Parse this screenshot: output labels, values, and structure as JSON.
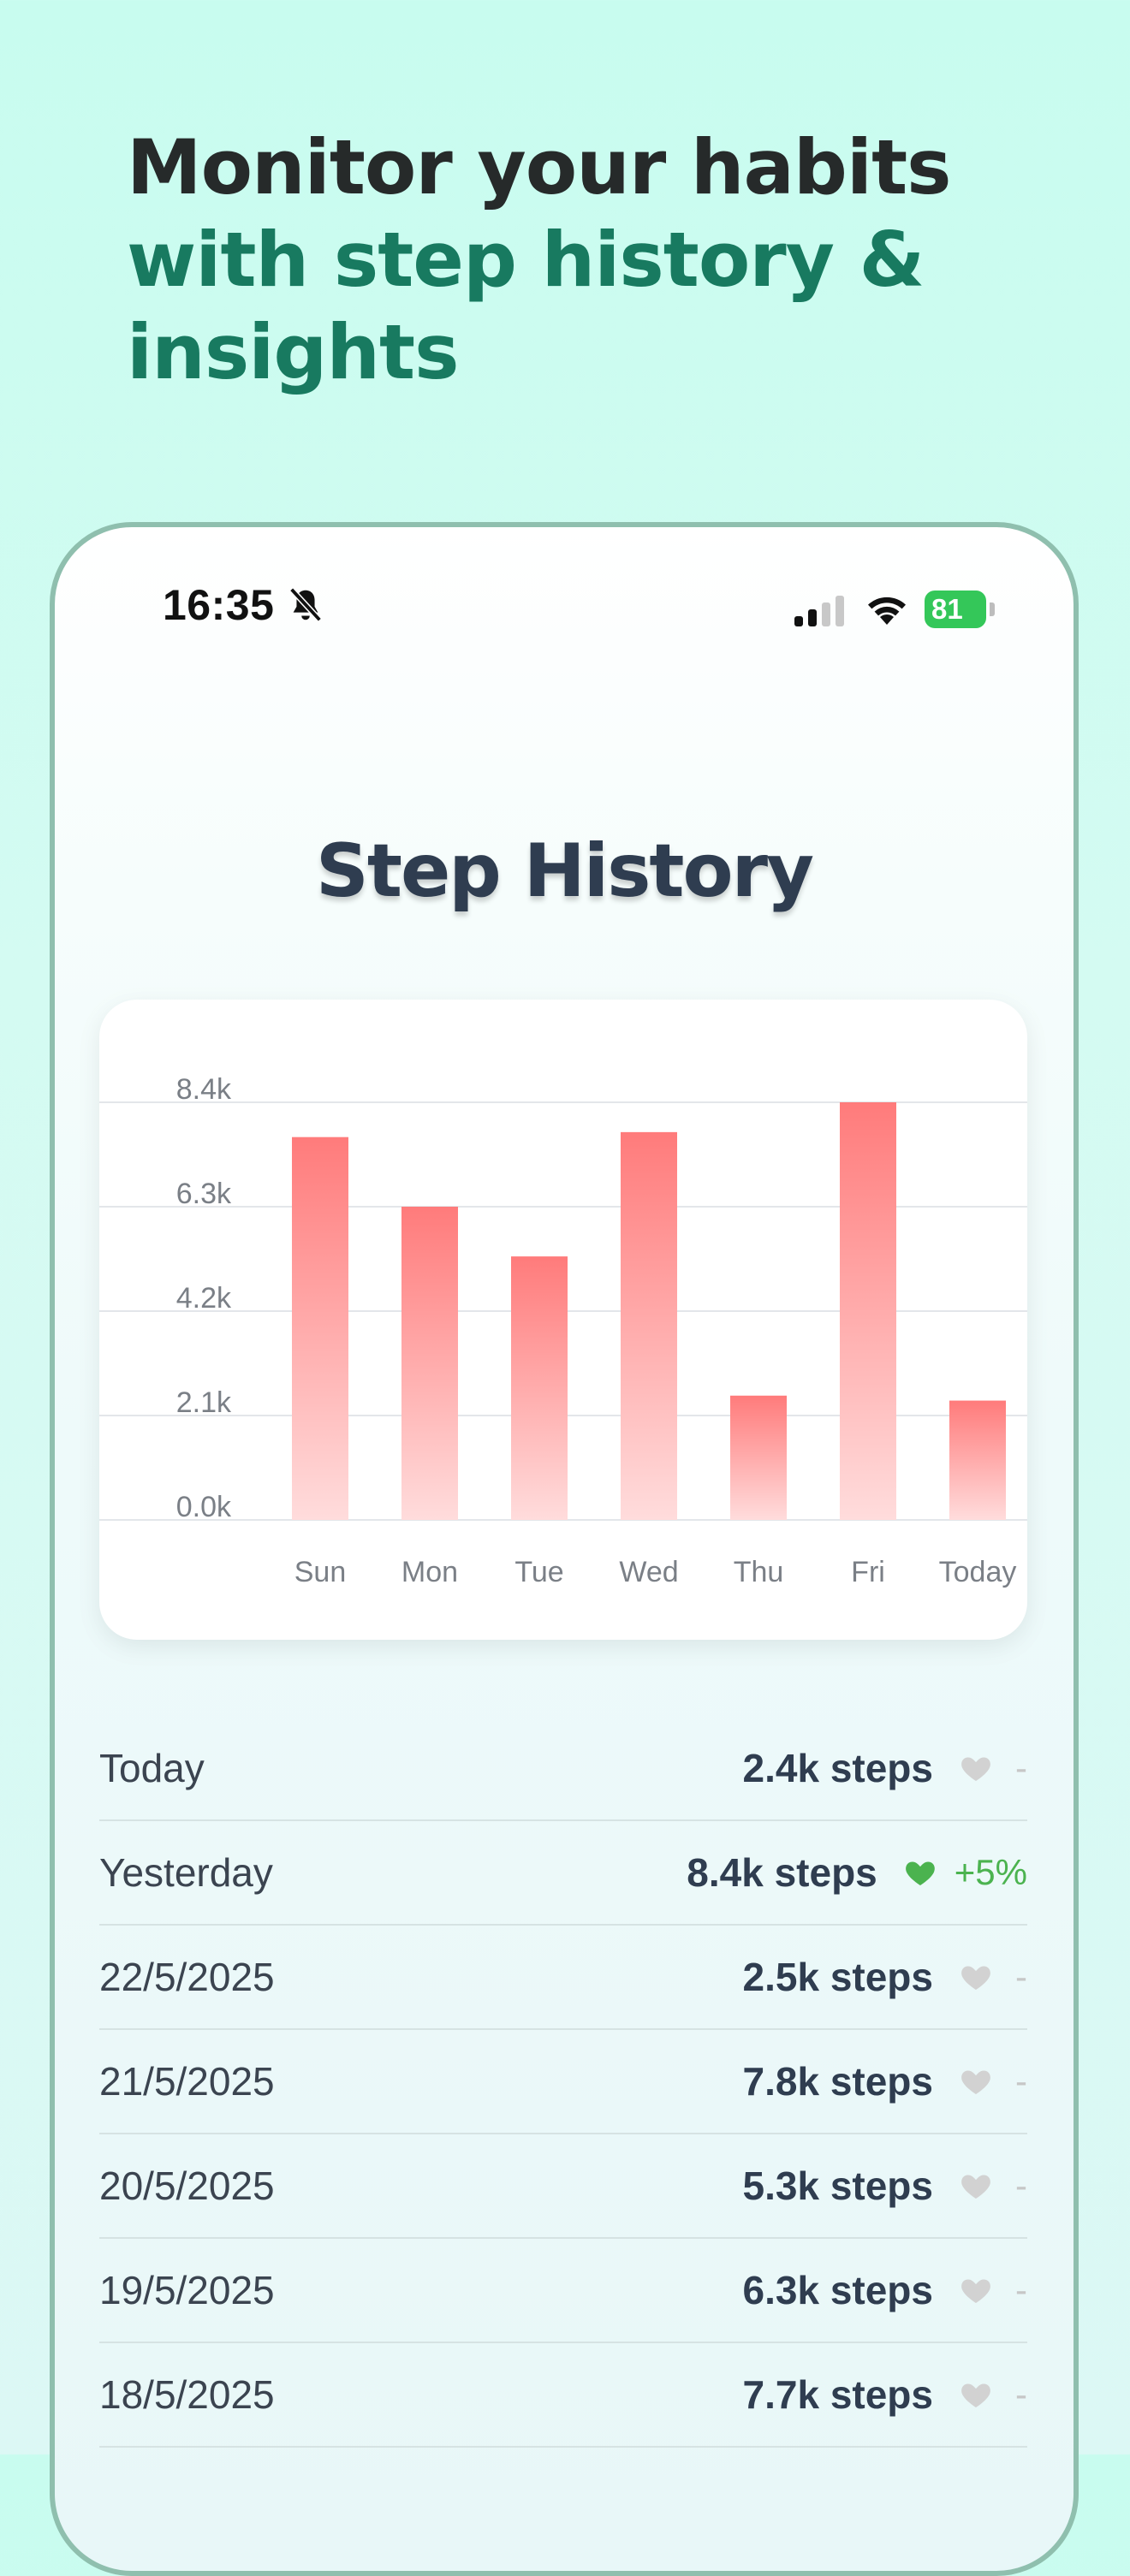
{
  "headline": {
    "line1": "Monitor your habits",
    "line2": "with step history &",
    "line3": "insights"
  },
  "status_bar": {
    "time": "16:35",
    "battery": "81"
  },
  "screen_title": "Step History",
  "colors": {
    "bar_top": "#ff7b7b",
    "bar_bottom": "#ffdcdc",
    "heart_positive": "#4bb34f",
    "heart_neutral": "#d2d2d2"
  },
  "chart_data": {
    "type": "bar",
    "categories": [
      "Sun",
      "Mon",
      "Tue",
      "Wed",
      "Thu",
      "Fri",
      "Today"
    ],
    "values": [
      7700,
      6300,
      5300,
      7800,
      2500,
      8400,
      2400
    ],
    "ylim": [
      0,
      8400
    ],
    "yticks": [
      "0.0k",
      "2.1k",
      "4.2k",
      "6.3k",
      "8.4k"
    ],
    "ytick_values": [
      0,
      2100,
      4200,
      6300,
      8400
    ],
    "grid": true
  },
  "history": [
    {
      "date": "Today",
      "steps": "2.4k steps",
      "change": "-",
      "trend": "neutral"
    },
    {
      "date": "Yesterday",
      "steps": "8.4k steps",
      "change": "+5%",
      "trend": "positive"
    },
    {
      "date": "22/5/2025",
      "steps": "2.5k steps",
      "change": "-",
      "trend": "neutral"
    },
    {
      "date": "21/5/2025",
      "steps": "7.8k steps",
      "change": "-",
      "trend": "neutral"
    },
    {
      "date": "20/5/2025",
      "steps": "5.3k steps",
      "change": "-",
      "trend": "neutral"
    },
    {
      "date": "19/5/2025",
      "steps": "6.3k steps",
      "change": "-",
      "trend": "neutral"
    },
    {
      "date": "18/5/2025",
      "steps": "7.7k steps",
      "change": "-",
      "trend": "neutral"
    }
  ]
}
